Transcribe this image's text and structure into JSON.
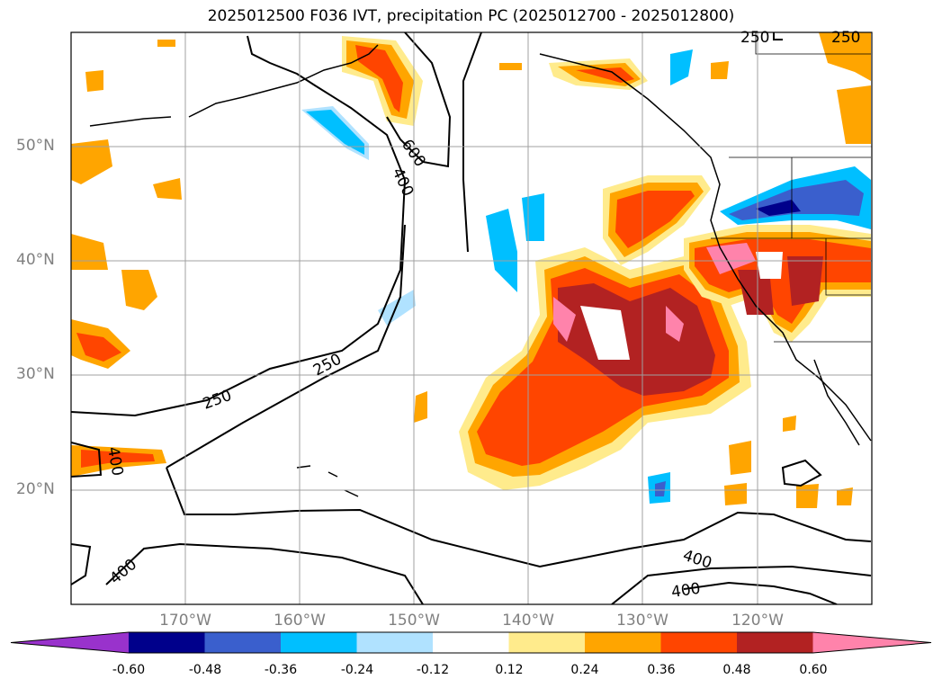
{
  "title": "2025012500 F036 IVT, precipitation PC (2025012700 - 2025012800)",
  "lat_ticks": [
    "50°N",
    "40°N",
    "30°N",
    "20°N"
  ],
  "lon_ticks": [
    "170°W",
    "160°W",
    "150°W",
    "140°W",
    "130°W",
    "120°W"
  ],
  "contour_labels": [
    "250",
    "250",
    "250",
    "400",
    "400",
    "400",
    "400",
    "600",
    "250",
    "400"
  ],
  "colorbar": {
    "ticks": [
      "-0.60",
      "-0.48",
      "-0.36",
      "-0.24",
      "-0.12",
      "0.12",
      "0.24",
      "0.36",
      "0.48",
      "0.60"
    ],
    "colors": [
      "#9932cc",
      "#00008b",
      "#3a5fcd",
      "#00bfff",
      "#b0e2ff",
      "#ffffff",
      "#ffeb8c",
      "#ffa500",
      "#ff4500",
      "#b22222",
      "#ff83ab"
    ]
  },
  "map_extent": {
    "lon_min": -180,
    "lon_max": -110,
    "lat_min": 10,
    "lat_max": 60
  }
}
